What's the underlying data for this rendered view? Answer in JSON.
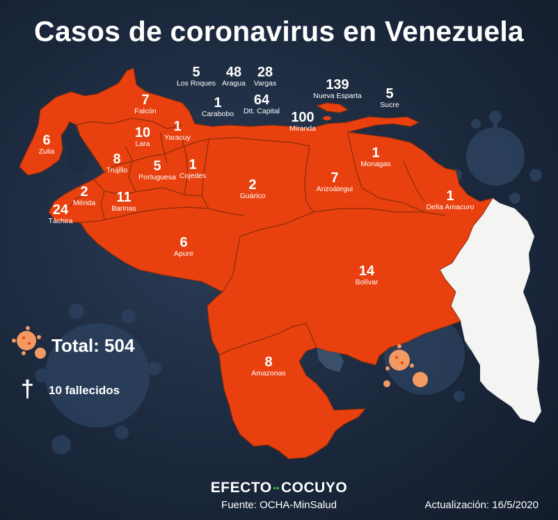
{
  "title": "Casos de coronavirus en Venezuela",
  "total_label": "Total: 504",
  "deaths_label": "10 fallecidos",
  "cross_symbol": "†",
  "brand_left": "EFECTO",
  "brand_dots": "••",
  "brand_right": "COCUYO",
  "source": "Fuente: OCHA-MinSalud",
  "updated": "Actualización: 16/5/2020",
  "colors": {
    "background": "#1b283c",
    "country_fill": "#e8410f",
    "border_lines": "#8a2b0a",
    "neighbor_fill": "#f4f4f2",
    "virus_orange": "#f39a63",
    "virus_dark": "#2e4462"
  },
  "states": [
    {
      "id": "los-roques",
      "cases": "5",
      "name": "Los Roques"
    },
    {
      "id": "aragua",
      "cases": "48",
      "name": "Aragua"
    },
    {
      "id": "vargas",
      "cases": "28",
      "name": "Vargas"
    },
    {
      "id": "nueva-esparta",
      "cases": "139",
      "name": "Nueva Esparta"
    },
    {
      "id": "sucre",
      "cases": "5",
      "name": "Sucre"
    },
    {
      "id": "falcon",
      "cases": "7",
      "name": "Falcón"
    },
    {
      "id": "carabobo",
      "cases": "1",
      "name": "Carabobo"
    },
    {
      "id": "dtt-capital",
      "cases": "64",
      "name": "Dtt. Capital"
    },
    {
      "id": "miranda",
      "cases": "100",
      "name": "Miranda"
    },
    {
      "id": "zulia",
      "cases": "6",
      "name": "Zulia"
    },
    {
      "id": "lara",
      "cases": "10",
      "name": "Lara"
    },
    {
      "id": "yaracuy",
      "cases": "1",
      "name": "Yaracuy"
    },
    {
      "id": "monagas",
      "cases": "1",
      "name": "Monagas"
    },
    {
      "id": "trujillo",
      "cases": "8",
      "name": "Trujillo"
    },
    {
      "id": "portuguesa",
      "cases": "5",
      "name": "Portuguesa"
    },
    {
      "id": "cojedes",
      "cases": "1",
      "name": "Cojedes"
    },
    {
      "id": "guarico",
      "cases": "2",
      "name": "Guárico"
    },
    {
      "id": "anzoategui",
      "cases": "7",
      "name": "Anzoátegui"
    },
    {
      "id": "merida",
      "cases": "2",
      "name": "Mérida"
    },
    {
      "id": "barinas",
      "cases": "11",
      "name": "Barinas"
    },
    {
      "id": "delta-amacuro",
      "cases": "1",
      "name": "Delta Amacuro"
    },
    {
      "id": "tachira",
      "cases": "24",
      "name": "Táchira"
    },
    {
      "id": "apure",
      "cases": "6",
      "name": "Apure"
    },
    {
      "id": "bolivar",
      "cases": "14",
      "name": "Bolívar"
    },
    {
      "id": "amazonas",
      "cases": "8",
      "name": "Amazonas"
    }
  ]
}
